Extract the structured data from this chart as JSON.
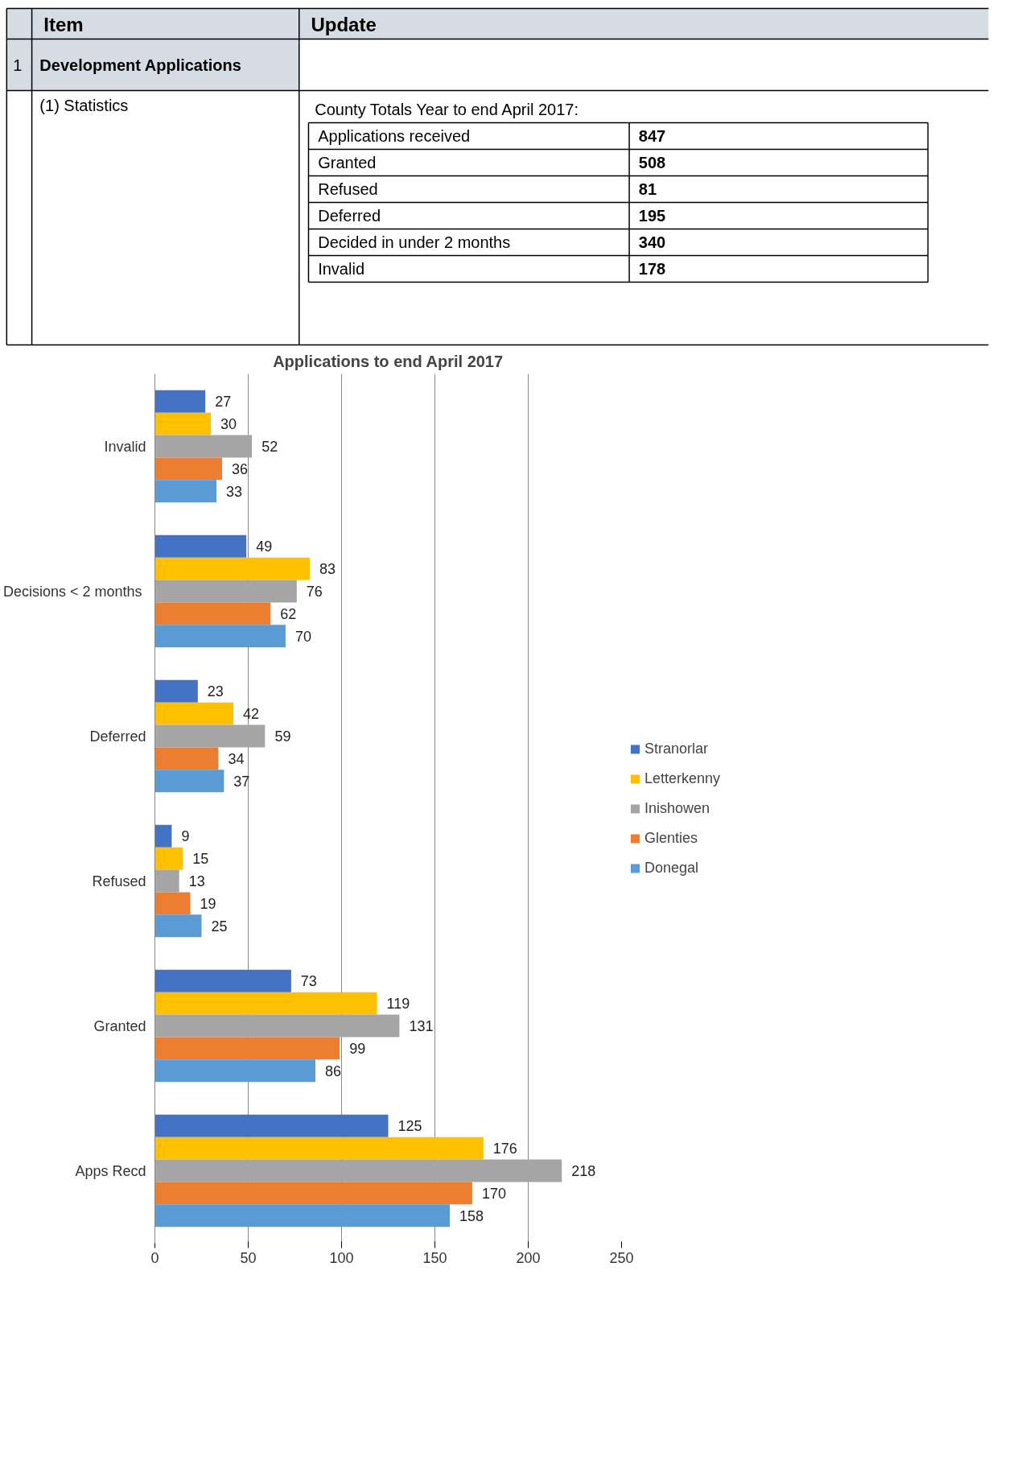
{
  "chart_data": [
    {
      "type": "other",
      "title": "County Totals Year to end April 2017:",
      "annotations": [
        "Item",
        "Update",
        "1",
        "Development Applications",
        "(1) Statistics"
      ],
      "categories": [
        "Applications received",
        "Granted",
        "Refused",
        "Deferred",
        "Decided in under 2 months",
        "Invalid"
      ],
      "values": [
        847,
        508,
        81,
        195,
        340,
        178
      ],
      "data_labels": true
    },
    {
      "type": "bar",
      "orientation": "horizontal",
      "title": "Applications to end April 2017",
      "categories": [
        "Invalid",
        "Decisions <  2 months",
        "Deferred",
        "Refused",
        "Granted",
        "Apps Recd"
      ],
      "series": [
        {
          "name": "Stranorlar",
          "color": "#4472c4",
          "values": [
            27,
            49,
            23,
            9,
            73,
            125
          ]
        },
        {
          "name": "Letterkenny",
          "color": "#ffc000",
          "values": [
            30,
            83,
            42,
            15,
            119,
            176
          ]
        },
        {
          "name": "Inishowen",
          "color": "#a5a5a5",
          "values": [
            52,
            76,
            59,
            13,
            131,
            218
          ]
        },
        {
          "name": "Glenties",
          "color": "#ed7d31",
          "values": [
            36,
            62,
            34,
            19,
            99,
            170
          ]
        },
        {
          "name": "Donegal",
          "color": "#5b9bd5",
          "values": [
            33,
            70,
            37,
            25,
            86,
            158
          ]
        }
      ],
      "xlim": [
        0,
        250
      ],
      "xticks": [
        0,
        50,
        100,
        150,
        200,
        250
      ],
      "grid": "x",
      "legend": "right",
      "data_labels": true
    }
  ]
}
